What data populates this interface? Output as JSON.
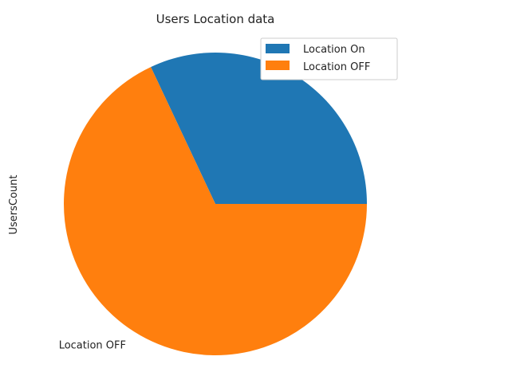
{
  "chart_data": {
    "type": "pie",
    "title": "Users Location data",
    "ylabel": "UsersCount",
    "labels": [
      "Location On",
      "Location OFF"
    ],
    "values": [
      32,
      68
    ],
    "colors": [
      "#1f77b4",
      "#ff7f0e"
    ],
    "legend": {
      "placement": "top-right",
      "entries": [
        "Location On",
        "Location OFF"
      ]
    }
  }
}
